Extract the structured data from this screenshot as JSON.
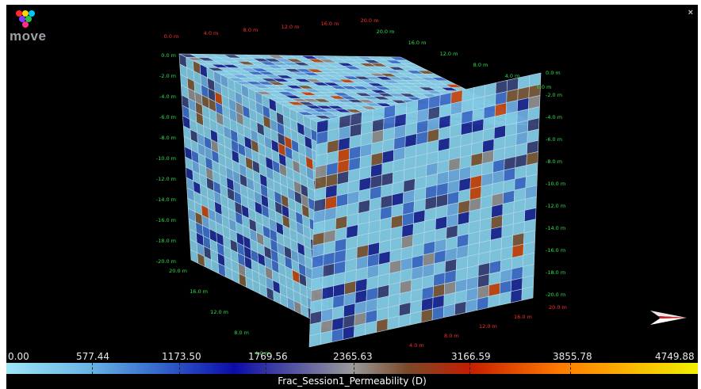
{
  "app": {
    "logo_text": "move",
    "close_glyph": "×"
  },
  "axes": {
    "front_depth": [
      "0.0 m",
      "-2.0 m",
      "-4.0 m",
      "-6.0 m",
      "-8.0 m",
      "-10.0 m",
      "-12.0 m",
      "-14.0 m",
      "-16.0 m",
      "-18.0 m",
      "-20.0 m"
    ],
    "right_depth": [
      "0.0 m",
      "-2.0 m",
      "-4.0 m",
      "-6.0 m",
      "-8.0 m",
      "-10.0 m",
      "-12.0 m",
      "-14.0 m",
      "-16.0 m",
      "-18.0 m",
      "-20.0 m"
    ],
    "top_back_red": [
      "20.0 m",
      "16.0 m",
      "12.0 m",
      "8.0 m",
      "4.0 m",
      "0.0 m"
    ],
    "top_back_green": [
      "20.0 m",
      "16.0 m",
      "12.0 m",
      "8.0 m",
      "4.0 m",
      "0.0 m"
    ],
    "bottom_green": [
      "20.0 m",
      "16.0 m",
      "12.0 m",
      "8.0 m",
      "4.0 m"
    ],
    "bottom_red": [
      "4.0 m",
      "8.0 m",
      "12.0 m",
      "16.0 m",
      "20.0 m"
    ]
  },
  "colorbar": {
    "title": "Frac_Session1_Permeability (D)",
    "labels": [
      "0.00",
      "577.44",
      "1173.50",
      "1769.56",
      "2365.63",
      "3166.59",
      "3855.78",
      "4749.88"
    ],
    "colors": {
      "light_cyan": "#9ee6f6",
      "sky": "#6ab4e6",
      "blue": "#3468cc",
      "navy": "#0c0ca8",
      "gray": "#9a9a9a",
      "brown": "#7a4a2a",
      "red": "#c41e00",
      "orange": "#ff7a00",
      "yellow": "#f2f000"
    }
  }
}
